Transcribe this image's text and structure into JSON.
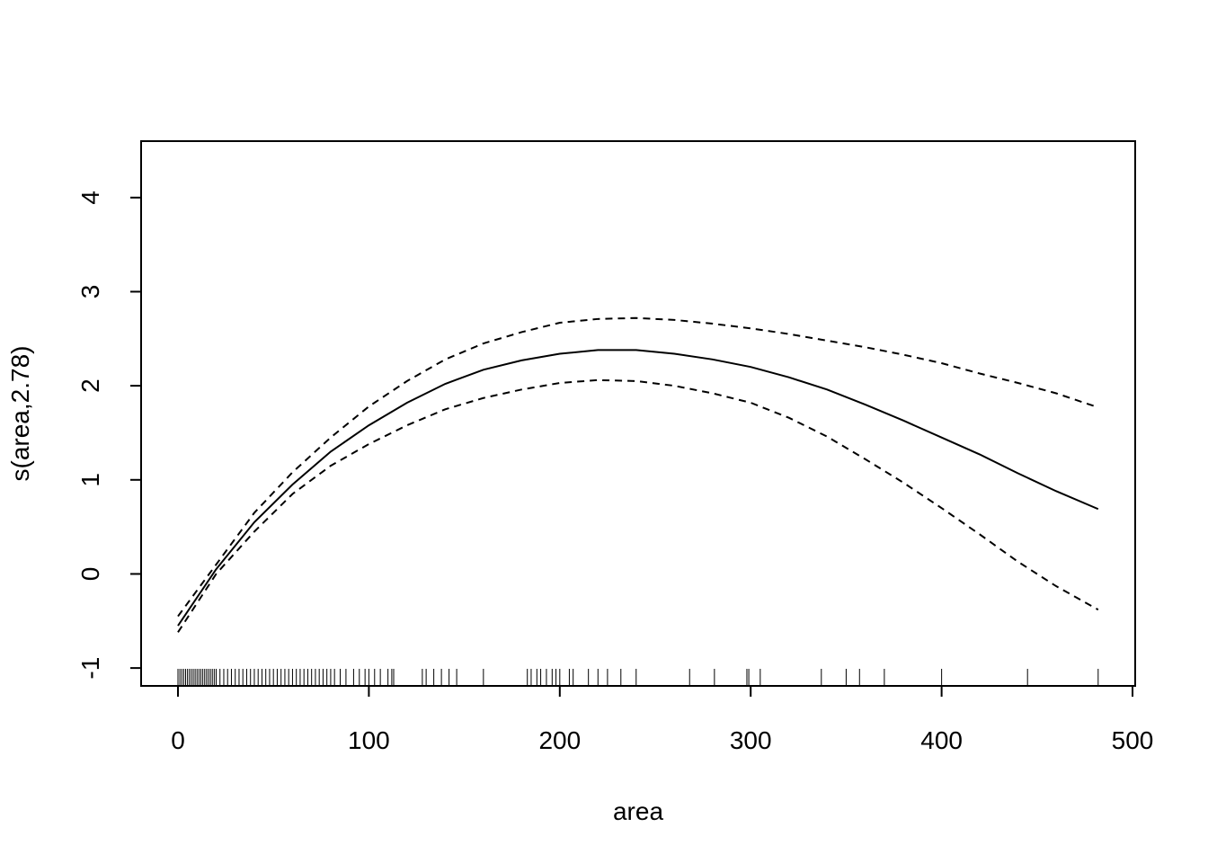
{
  "chart_data": {
    "type": "line",
    "xlabel": "area",
    "ylabel": "s(area,2.78)",
    "x": [
      0,
      20,
      40,
      60,
      80,
      100,
      120,
      140,
      160,
      180,
      200,
      220,
      240,
      260,
      280,
      300,
      320,
      340,
      360,
      380,
      400,
      420,
      440,
      460,
      482
    ],
    "series": [
      {
        "color": "#000000",
        "linestyle": "solid",
        "values": [
          -0.55,
          0.05,
          0.55,
          0.95,
          1.3,
          1.58,
          1.82,
          2.02,
          2.17,
          2.27,
          2.34,
          2.38,
          2.38,
          2.34,
          2.28,
          2.2,
          2.09,
          1.96,
          1.8,
          1.63,
          1.45,
          1.27,
          1.07,
          0.88,
          0.69
        ]
      },
      {
        "color": "#000000",
        "linestyle": "dashed",
        "values": [
          -0.45,
          0.1,
          0.65,
          1.08,
          1.45,
          1.78,
          2.05,
          2.28,
          2.45,
          2.57,
          2.67,
          2.71,
          2.72,
          2.7,
          2.66,
          2.61,
          2.55,
          2.48,
          2.41,
          2.33,
          2.24,
          2.13,
          2.03,
          1.92,
          1.77
        ]
      },
      {
        "color": "#000000",
        "linestyle": "dashed",
        "values": [
          -0.62,
          0.0,
          0.45,
          0.85,
          1.15,
          1.38,
          1.58,
          1.75,
          1.87,
          1.96,
          2.03,
          2.06,
          2.05,
          2.0,
          1.92,
          1.82,
          1.66,
          1.46,
          1.22,
          0.97,
          0.7,
          0.42,
          0.13,
          -0.13,
          -0.38
        ]
      }
    ],
    "rug": [
      0,
      1,
      2,
      3,
      4,
      5,
      6,
      7,
      8,
      9,
      10,
      11,
      12,
      13,
      14,
      15,
      16,
      17,
      18,
      19,
      20,
      22,
      24,
      26,
      28,
      30,
      32,
      34,
      36,
      38,
      40,
      42,
      44,
      46,
      48,
      50,
      52,
      54,
      56,
      58,
      60,
      62,
      64,
      66,
      68,
      70,
      72,
      74,
      76,
      78,
      80,
      82,
      85,
      88,
      92,
      95,
      98,
      100,
      103,
      106,
      110,
      112,
      113,
      128,
      130,
      134,
      138,
      142,
      146,
      160,
      183,
      185,
      188,
      190,
      193,
      196,
      198,
      200,
      205,
      207,
      215,
      220,
      225,
      232,
      240,
      268,
      281,
      298,
      299,
      305,
      337,
      350,
      357,
      370,
      400,
      445,
      482
    ],
    "xlim": [
      -19.3,
      501.4
    ],
    "ylim": [
      -1.19,
      4.6
    ],
    "xticks": [
      0,
      100,
      200,
      300,
      400,
      500
    ],
    "yticks": [
      -1,
      0,
      1,
      2,
      3,
      4
    ]
  }
}
